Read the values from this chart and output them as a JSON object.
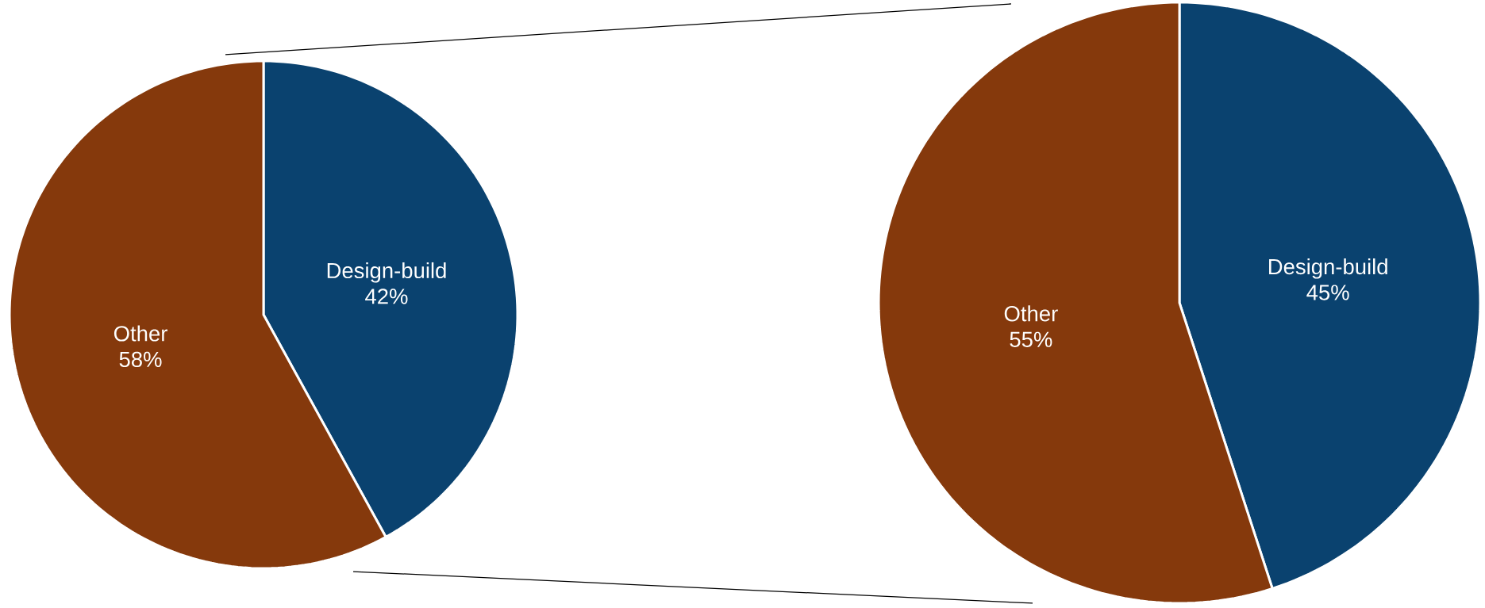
{
  "chart_data": [
    {
      "type": "pie",
      "categories": [
        "Design-build",
        "Other"
      ],
      "values": [
        42,
        58
      ],
      "colors": [
        "#0a426f",
        "#85390c"
      ],
      "value_labels": [
        "42%",
        "58%"
      ]
    },
    {
      "type": "pie",
      "categories": [
        "Design-build",
        "Other"
      ],
      "values": [
        45,
        55
      ],
      "colors": [
        "#0a426f",
        "#85390c"
      ],
      "value_labels": [
        "45%",
        "55%"
      ]
    }
  ]
}
